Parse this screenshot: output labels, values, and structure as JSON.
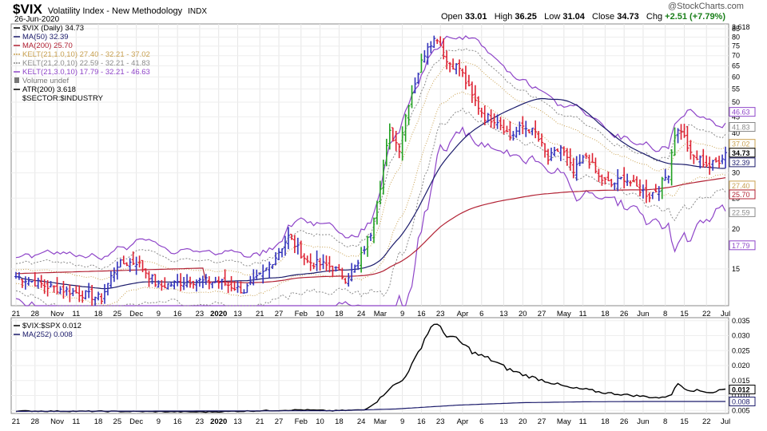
{
  "header": {
    "symbol": "$VIX",
    "name": "Volatility Index - New Methodology",
    "exchange": "INDX",
    "date": "26-Jun-2020",
    "watermark": "@StockCharts.com",
    "ohlc": {
      "open_label": "Open",
      "open": "33.01",
      "high_label": "High",
      "high": "36.25",
      "low_label": "Low",
      "low": "31.04",
      "close_label": "Close",
      "close": "34.73",
      "chg_label": "Chg",
      "chg": "+2.51 (+7.79%)"
    }
  },
  "legend_main": [
    {
      "text": "$VIX (Daily) 34.73",
      "color": "#000000",
      "marker": "bar"
    },
    {
      "text": "MA(50) 32.39",
      "color": "#1b1b6b",
      "marker": "line"
    },
    {
      "text": "MA(200) 25.70",
      "color": "#b22234",
      "marker": "line"
    },
    {
      "text": "KELT(21,1.0,10) 27.40 - 32.21 - 37.02",
      "color": "#c8a050",
      "marker": "dash"
    },
    {
      "text": "KELT(21,2.0,10) 22.59 - 32.21 - 41.83",
      "color": "#8a8a8a",
      "marker": "dash"
    },
    {
      "text": "KELT(21,3.0,10) 17.79 - 32.21 - 46.63",
      "color": "#8e44c8",
      "marker": "line"
    },
    {
      "text": "Volume undef",
      "color": "#777777",
      "marker": "vol"
    },
    {
      "text": "ATR(200) 3.618",
      "color": "#000000",
      "marker": "line"
    },
    {
      "text": "$SECTOR:$INDUSTRY",
      "color": "#000000",
      "marker": "none"
    }
  ],
  "legend_lower": [
    {
      "text": "$VIX:$SPX 0.012",
      "color": "#000000",
      "marker": "line"
    },
    {
      "text": "MA(252) 0.008",
      "color": "#1b1b6b",
      "marker": "line"
    }
  ],
  "x_axis_labels": [
    "21",
    "28",
    "Nov",
    "11",
    "18",
    "25",
    "Dec",
    "9",
    "16",
    "23",
    "2020",
    "13",
    "21",
    "27",
    "Feb",
    "10",
    "18",
    "24",
    "Mar",
    "9",
    "16",
    "23",
    "Apr",
    "6",
    "13",
    "20",
    "27",
    "May",
    "11",
    "18",
    "26",
    "Jun",
    "8",
    "15",
    "22",
    "Jul"
  ],
  "chart_data": [
    {
      "type": "bar",
      "subtype": "ohlc",
      "title": "$VIX (Daily) 34.73",
      "y_scale": "log",
      "ylim": [
        11.5,
        88
      ],
      "y_ticks": [
        15,
        20,
        25,
        30,
        35,
        40,
        45,
        50,
        55,
        60,
        65,
        70,
        75,
        80,
        85
      ],
      "right_badges": [
        {
          "value": 3.618,
          "label": "3.618",
          "style": "plain"
        },
        {
          "value": 46.63,
          "label": "46.63",
          "style": "box",
          "color": "#8e44c8"
        },
        {
          "value": 41.83,
          "label": "41.83",
          "style": "box",
          "color": "#8a8a8a"
        },
        {
          "value": 37.02,
          "label": "37.02",
          "style": "box",
          "color": "#c8a050"
        },
        {
          "value": 34.73,
          "label": "34.73",
          "style": "box-bold",
          "color": "#000000"
        },
        {
          "value": 32.39,
          "label": "32.39",
          "style": "box",
          "color": "#1b1b6b"
        },
        {
          "value": 27.4,
          "label": "27.40",
          "style": "box",
          "color": "#c8a050"
        },
        {
          "value": 25.7,
          "label": "25.70",
          "style": "box",
          "color": "#b22234"
        },
        {
          "value": 22.59,
          "label": "22.59",
          "style": "box",
          "color": "#8a8a8a"
        },
        {
          "value": 17.79,
          "label": "17.79",
          "style": "box",
          "color": "#8e44c8"
        }
      ],
      "last": {
        "open": 33.01,
        "high": 36.25,
        "low": 31.04,
        "close": 34.73
      },
      "close_anchors": [
        {
          "d": 0,
          "v": 14.2
        },
        {
          "d": 10,
          "v": 13.2
        },
        {
          "d": 20,
          "v": 12.6
        },
        {
          "d": 27,
          "v": 12.1
        },
        {
          "d": 32,
          "v": 15.5
        },
        {
          "d": 38,
          "v": 15.8
        },
        {
          "d": 45,
          "v": 13.2
        },
        {
          "d": 55,
          "v": 13.8
        },
        {
          "d": 65,
          "v": 13.6
        },
        {
          "d": 72,
          "v": 12.8
        },
        {
          "d": 78,
          "v": 14.5
        },
        {
          "d": 82,
          "v": 16.4
        },
        {
          "d": 86,
          "v": 18.9
        },
        {
          "d": 92,
          "v": 15.8
        },
        {
          "d": 100,
          "v": 15.2
        },
        {
          "d": 104,
          "v": 14.0
        },
        {
          "d": 108,
          "v": 15.5
        },
        {
          "d": 112,
          "v": 19.5
        },
        {
          "d": 115,
          "v": 27.5
        },
        {
          "d": 118,
          "v": 40.0
        },
        {
          "d": 121,
          "v": 36.0
        },
        {
          "d": 124,
          "v": 50.0
        },
        {
          "d": 127,
          "v": 62.0
        },
        {
          "d": 130,
          "v": 76.0
        },
        {
          "d": 133,
          "v": 80.0
        },
        {
          "d": 136,
          "v": 67.0
        },
        {
          "d": 140,
          "v": 64.0
        },
        {
          "d": 144,
          "v": 52.0
        },
        {
          "d": 148,
          "v": 45.0
        },
        {
          "d": 152,
          "v": 44.0
        },
        {
          "d": 156,
          "v": 39.0
        },
        {
          "d": 160,
          "v": 42.0
        },
        {
          "d": 164,
          "v": 40.0
        },
        {
          "d": 168,
          "v": 33.0
        },
        {
          "d": 172,
          "v": 36.0
        },
        {
          "d": 176,
          "v": 30.0
        },
        {
          "d": 180,
          "v": 34.0
        },
        {
          "d": 184,
          "v": 29.0
        },
        {
          "d": 188,
          "v": 27.5
        },
        {
          "d": 192,
          "v": 29.0
        },
        {
          "d": 196,
          "v": 27.0
        },
        {
          "d": 200,
          "v": 25.5
        },
        {
          "d": 203,
          "v": 27.0
        },
        {
          "d": 206,
          "v": 30.0
        },
        {
          "d": 208,
          "v": 40.0
        },
        {
          "d": 210,
          "v": 41.0
        },
        {
          "d": 213,
          "v": 34.0
        },
        {
          "d": 216,
          "v": 33.0
        },
        {
          "d": 219,
          "v": 31.5
        },
        {
          "d": 222,
          "v": 33.0
        },
        {
          "d": 224,
          "v": 34.73
        }
      ]
    },
    {
      "type": "line",
      "title": "$VIX:$SPX 0.012",
      "ylim": [
        0.004,
        0.036
      ],
      "y_ticks": [
        0.005,
        0.01,
        0.015,
        0.02,
        0.025,
        0.03,
        0.035
      ],
      "y_tick_labels": [
        "0.005",
        "0.010",
        "0.015",
        "0.020",
        "0.025",
        "0.030",
        "0.035"
      ],
      "right_badges": [
        {
          "value": 0.012,
          "label": "0.012",
          "style": "box-bold",
          "color": "#000000"
        },
        {
          "value": 0.008,
          "label": "0.008",
          "style": "box",
          "color": "#1b1b6b"
        }
      ],
      "series": [
        {
          "name": "$VIX:$SPX",
          "values_by_day": [
            [
              0,
              0.0048
            ],
            [
              30,
              0.0047
            ],
            [
              60,
              0.0045
            ],
            [
              90,
              0.0052
            ],
            [
              100,
              0.0049
            ],
            [
              110,
              0.0052
            ],
            [
              114,
              0.008
            ],
            [
              118,
              0.0125
            ],
            [
              122,
              0.015
            ],
            [
              126,
              0.022
            ],
            [
              129,
              0.029
            ],
            [
              132,
              0.0345
            ],
            [
              135,
              0.031
            ],
            [
              140,
              0.028
            ],
            [
              145,
              0.024
            ],
            [
              150,
              0.022
            ],
            [
              155,
              0.019
            ],
            [
              160,
              0.017
            ],
            [
              165,
              0.0155
            ],
            [
              170,
              0.014
            ],
            [
              175,
              0.0125
            ],
            [
              180,
              0.012
            ],
            [
              185,
              0.011
            ],
            [
              190,
              0.0105
            ],
            [
              195,
              0.01
            ],
            [
              200,
              0.0095
            ],
            [
              204,
              0.0092
            ],
            [
              207,
              0.0105
            ],
            [
              209,
              0.014
            ],
            [
              212,
              0.012
            ],
            [
              216,
              0.0115
            ],
            [
              220,
              0.011
            ],
            [
              222,
              0.0118
            ],
            [
              224,
              0.012
            ]
          ]
        },
        {
          "name": "MA(252)",
          "values_by_day": [
            [
              0,
              0.0047
            ],
            [
              100,
              0.0049
            ],
            [
              120,
              0.0055
            ],
            [
              140,
              0.0068
            ],
            [
              160,
              0.0076
            ],
            [
              180,
              0.0079
            ],
            [
              200,
              0.008
            ],
            [
              224,
              0.008
            ]
          ]
        }
      ]
    }
  ]
}
